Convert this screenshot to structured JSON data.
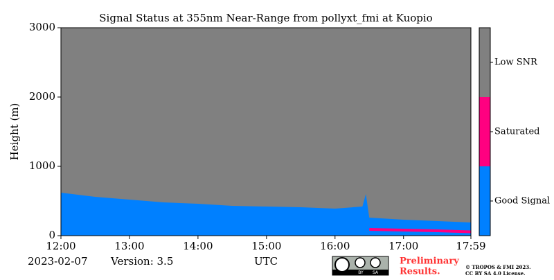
{
  "chart_data": {
    "type": "heatmap",
    "title": "Signal Status at 355nm Near-Range from pollyxt_fmi at Kuopio",
    "x_label": "UTC",
    "y_label": "Height (m)",
    "x": [
      12,
      12.5,
      13,
      13.5,
      14,
      14.5,
      15,
      15.5,
      16,
      16.4,
      16.45,
      16.5,
      17,
      17.5,
      17.98
    ],
    "series": [
      {
        "name": "Good Signal",
        "color": "#0080ff",
        "values": [
          620,
          560,
          520,
          480,
          460,
          430,
          420,
          410,
          390,
          420,
          600,
          260,
          230,
          210,
          190
        ]
      },
      {
        "name": "Saturated",
        "color": "#ff0080",
        "values": [
          null,
          null,
          null,
          null,
          null,
          null,
          null,
          null,
          null,
          null,
          null,
          90,
          80,
          70,
          55
        ]
      }
    ],
    "background": {
      "name": "Low SNR",
      "color": "#808080"
    },
    "colorbar": {
      "labels": [
        "Good Signal",
        "Saturated",
        "Low SNR"
      ],
      "colors": [
        "#0080ff",
        "#ff0080",
        "#808080"
      ]
    },
    "xlim": [
      12,
      17.983
    ],
    "ylim": [
      0,
      3000
    ],
    "xticks": [
      {
        "value": 12,
        "label": "12:00"
      },
      {
        "value": 13,
        "label": "13:00"
      },
      {
        "value": 14,
        "label": "14:00"
      },
      {
        "value": 15,
        "label": "15:00"
      },
      {
        "value": 16,
        "label": "16:00"
      },
      {
        "value": 17,
        "label": "17:00"
      },
      {
        "value": 17.983,
        "label": "17:59"
      }
    ],
    "yticks": [
      0,
      1000,
      2000,
      3000
    ],
    "date": "2023-02-07",
    "version": "Version: 3.5",
    "notice": [
      "Preliminary",
      "Results."
    ],
    "license": [
      "© TROPOS & FMI 2023.",
      "CC BY SA 4.0 License."
    ],
    "logo": [
      "BY",
      "SA"
    ]
  }
}
